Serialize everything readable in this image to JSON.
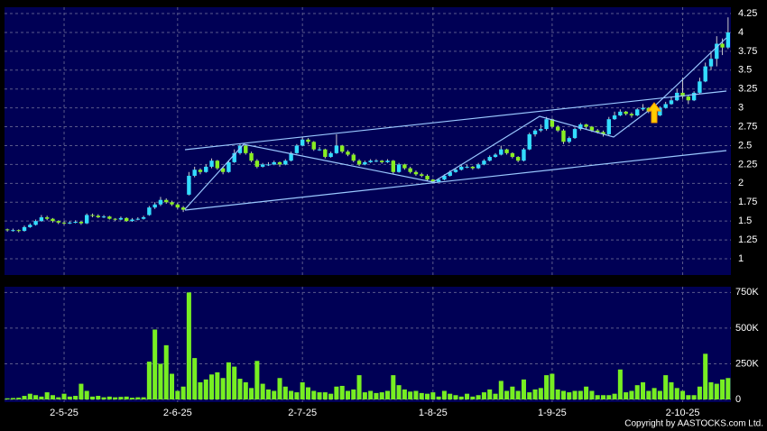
{
  "chart_data": {
    "type": "candlestick",
    "up_color": "#33ddff",
    "down_color": "#88ee22",
    "volume_color": "#77ee22",
    "grid": true,
    "copyright": "Copyright by AASTOCKS.com Ltd.",
    "categories": [
      null,
      null,
      null,
      null,
      null,
      null,
      null,
      null,
      null,
      null,
      "2-5-25",
      null,
      null,
      null,
      null,
      null,
      null,
      null,
      null,
      null,
      null,
      null,
      null,
      null,
      null,
      null,
      null,
      null,
      null,
      null,
      "2-6-25",
      null,
      null,
      null,
      null,
      null,
      null,
      null,
      null,
      null,
      null,
      null,
      null,
      null,
      null,
      null,
      null,
      null,
      null,
      null,
      null,
      null,
      "2-7-25",
      null,
      null,
      null,
      null,
      null,
      null,
      null,
      null,
      null,
      null,
      null,
      null,
      null,
      null,
      null,
      null,
      null,
      null,
      null,
      null,
      null,
      null,
      "1-8-25",
      null,
      null,
      null,
      null,
      null,
      null,
      null,
      null,
      null,
      null,
      null,
      null,
      null,
      null,
      null,
      null,
      null,
      null,
      null,
      null,
      "1-9-25",
      null,
      null,
      null,
      null,
      null,
      null,
      null,
      null,
      null,
      null,
      null,
      null,
      null,
      null,
      null,
      null,
      null,
      null,
      null,
      null,
      null,
      null,
      "2-10-25",
      null,
      null,
      null,
      null,
      null,
      null,
      null,
      null
    ],
    "ohlc": [
      [
        1.39,
        1.4,
        1.36,
        1.38
      ],
      [
        1.38,
        1.4,
        1.36,
        1.38
      ],
      [
        1.38,
        1.39,
        1.35,
        1.37
      ],
      [
        1.37,
        1.44,
        1.36,
        1.42
      ],
      [
        1.42,
        1.47,
        1.41,
        1.45
      ],
      [
        1.45,
        1.52,
        1.44,
        1.5
      ],
      [
        1.5,
        1.58,
        1.49,
        1.55
      ],
      [
        1.55,
        1.57,
        1.51,
        1.53
      ],
      [
        1.53,
        1.54,
        1.48,
        1.5
      ],
      [
        1.5,
        1.51,
        1.46,
        1.48
      ],
      [
        1.48,
        1.5,
        1.45,
        1.47
      ],
      [
        1.47,
        1.5,
        1.46,
        1.48
      ],
      [
        1.48,
        1.51,
        1.47,
        1.49
      ],
      [
        1.49,
        1.5,
        1.45,
        1.47
      ],
      [
        1.47,
        1.6,
        1.46,
        1.58
      ],
      [
        1.58,
        1.6,
        1.55,
        1.57
      ],
      [
        1.57,
        1.59,
        1.54,
        1.55
      ],
      [
        1.55,
        1.58,
        1.54,
        1.56
      ],
      [
        1.56,
        1.57,
        1.52,
        1.53
      ],
      [
        1.53,
        1.54,
        1.5,
        1.52
      ],
      [
        1.52,
        1.56,
        1.51,
        1.54
      ],
      [
        1.54,
        1.55,
        1.49,
        1.5
      ],
      [
        1.5,
        1.54,
        1.49,
        1.52
      ],
      [
        1.52,
        1.55,
        1.51,
        1.53
      ],
      [
        1.53,
        1.57,
        1.52,
        1.55
      ],
      [
        1.58,
        1.7,
        1.57,
        1.68
      ],
      [
        1.68,
        1.75,
        1.66,
        1.72
      ],
      [
        1.72,
        1.82,
        1.7,
        1.78
      ],
      [
        1.78,
        1.8,
        1.73,
        1.75
      ],
      [
        1.75,
        1.77,
        1.7,
        1.72
      ],
      [
        1.72,
        1.74,
        1.66,
        1.68
      ],
      [
        1.68,
        1.7,
        1.62,
        1.65
      ],
      [
        1.85,
        2.15,
        1.84,
        2.1
      ],
      [
        2.1,
        2.22,
        2.08,
        2.18
      ],
      [
        2.18,
        2.2,
        2.12,
        2.15
      ],
      [
        2.15,
        2.25,
        2.14,
        2.22
      ],
      [
        2.22,
        2.33,
        2.2,
        2.3
      ],
      [
        2.3,
        2.31,
        2.18,
        2.2
      ],
      [
        2.2,
        2.22,
        2.12,
        2.15
      ],
      [
        2.15,
        2.3,
        2.14,
        2.28
      ],
      [
        2.28,
        2.45,
        2.27,
        2.4
      ],
      [
        2.4,
        2.52,
        2.38,
        2.5
      ],
      [
        2.5,
        2.51,
        2.38,
        2.4
      ],
      [
        2.4,
        2.42,
        2.28,
        2.3
      ],
      [
        2.3,
        2.32,
        2.2,
        2.22
      ],
      [
        2.22,
        2.27,
        2.21,
        2.25
      ],
      [
        2.25,
        2.28,
        2.23,
        2.25
      ],
      [
        2.25,
        2.3,
        2.24,
        2.28
      ],
      [
        2.28,
        2.29,
        2.22,
        2.25
      ],
      [
        2.25,
        2.32,
        2.24,
        2.3
      ],
      [
        2.3,
        2.42,
        2.29,
        2.4
      ],
      [
        2.4,
        2.52,
        2.39,
        2.5
      ],
      [
        2.5,
        2.62,
        2.49,
        2.58
      ],
      [
        2.58,
        2.6,
        2.52,
        2.55
      ],
      [
        2.55,
        2.56,
        2.43,
        2.45
      ],
      [
        2.45,
        2.48,
        2.43,
        2.45
      ],
      [
        2.45,
        2.46,
        2.33,
        2.35
      ],
      [
        2.35,
        2.42,
        2.34,
        2.4
      ],
      [
        2.4,
        2.65,
        2.39,
        2.5
      ],
      [
        2.5,
        2.51,
        2.4,
        2.42
      ],
      [
        2.42,
        2.44,
        2.36,
        2.38
      ],
      [
        2.38,
        2.4,
        2.28,
        2.3
      ],
      [
        2.3,
        2.32,
        2.23,
        2.25
      ],
      [
        2.25,
        2.3,
        2.24,
        2.28
      ],
      [
        2.28,
        2.32,
        2.27,
        2.3
      ],
      [
        2.3,
        2.32,
        2.28,
        2.3
      ],
      [
        2.3,
        2.31,
        2.26,
        2.28
      ],
      [
        2.28,
        2.32,
        2.27,
        2.3
      ],
      [
        2.3,
        2.31,
        2.12,
        2.15
      ],
      [
        2.15,
        2.27,
        2.14,
        2.25
      ],
      [
        2.25,
        2.26,
        2.18,
        2.2
      ],
      [
        2.2,
        2.22,
        2.13,
        2.15
      ],
      [
        2.15,
        2.17,
        2.1,
        2.12
      ],
      [
        2.12,
        2.14,
        2.08,
        2.1
      ],
      [
        2.1,
        2.12,
        2.03,
        2.05
      ],
      [
        2.05,
        2.06,
        2.0,
        2.02
      ],
      [
        2.02,
        2.07,
        2.01,
        2.05
      ],
      [
        2.05,
        2.12,
        2.04,
        2.1
      ],
      [
        2.1,
        2.17,
        2.09,
        2.15
      ],
      [
        2.15,
        2.2,
        2.14,
        2.18
      ],
      [
        2.18,
        2.24,
        2.17,
        2.22
      ],
      [
        2.22,
        2.25,
        2.2,
        2.22
      ],
      [
        2.22,
        2.23,
        2.18,
        2.2
      ],
      [
        2.2,
        2.27,
        2.19,
        2.25
      ],
      [
        2.25,
        2.32,
        2.24,
        2.3
      ],
      [
        2.3,
        2.37,
        2.29,
        2.35
      ],
      [
        2.35,
        2.4,
        2.34,
        2.38
      ],
      [
        2.38,
        2.5,
        2.37,
        2.45
      ],
      [
        2.45,
        2.46,
        2.38,
        2.4
      ],
      [
        2.4,
        2.41,
        2.33,
        2.35
      ],
      [
        2.35,
        2.36,
        2.28,
        2.3
      ],
      [
        2.3,
        2.47,
        2.29,
        2.45
      ],
      [
        2.45,
        2.67,
        2.44,
        2.65
      ],
      [
        2.65,
        2.72,
        2.62,
        2.7
      ],
      [
        2.7,
        2.78,
        2.68,
        2.72
      ],
      [
        2.72,
        2.88,
        2.7,
        2.85
      ],
      [
        2.85,
        2.86,
        2.73,
        2.75
      ],
      [
        2.75,
        2.77,
        2.68,
        2.7
      ],
      [
        2.7,
        2.72,
        2.52,
        2.55
      ],
      [
        2.55,
        2.62,
        2.53,
        2.6
      ],
      [
        2.6,
        2.74,
        2.59,
        2.72
      ],
      [
        2.72,
        2.8,
        2.7,
        2.78
      ],
      [
        2.78,
        2.79,
        2.72,
        2.75
      ],
      [
        2.75,
        2.76,
        2.68,
        2.7
      ],
      [
        2.7,
        2.72,
        2.66,
        2.68
      ],
      [
        2.68,
        2.7,
        2.62,
        2.65
      ],
      [
        2.65,
        2.88,
        2.64,
        2.85
      ],
      [
        2.85,
        2.95,
        2.84,
        2.9
      ],
      [
        2.9,
        2.98,
        2.89,
        2.95
      ],
      [
        2.95,
        2.96,
        2.9,
        2.92
      ],
      [
        2.92,
        2.94,
        2.87,
        2.9
      ],
      [
        2.9,
        3.0,
        2.89,
        2.98
      ],
      [
        2.98,
        3.05,
        2.96,
        3.0
      ],
      [
        3.0,
        3.01,
        2.93,
        2.95
      ],
      [
        2.95,
        2.97,
        2.88,
        2.9
      ],
      [
        2.9,
        3.02,
        2.89,
        3.0
      ],
      [
        3.0,
        3.08,
        2.99,
        3.05
      ],
      [
        3.05,
        3.15,
        3.04,
        3.1
      ],
      [
        3.1,
        3.25,
        3.09,
        3.2
      ],
      [
        3.2,
        3.4,
        3.12,
        3.15
      ],
      [
        3.15,
        3.17,
        3.05,
        3.1
      ],
      [
        3.1,
        3.22,
        3.09,
        3.2
      ],
      [
        3.2,
        3.4,
        3.19,
        3.35
      ],
      [
        3.35,
        3.6,
        3.34,
        3.55
      ],
      [
        3.55,
        3.75,
        3.5,
        3.65
      ],
      [
        3.65,
        3.95,
        3.55,
        3.85
      ],
      [
        3.85,
        3.92,
        3.7,
        3.8
      ],
      [
        3.8,
        4.2,
        3.78,
        4.0
      ]
    ],
    "volume": [
      8000,
      10000,
      12000,
      25000,
      40000,
      30000,
      20000,
      50000,
      30000,
      15000,
      40000,
      20000,
      25000,
      110000,
      60000,
      20000,
      25000,
      15000,
      20000,
      15000,
      18000,
      20000,
      12000,
      15000,
      15000,
      265000,
      490000,
      250000,
      380000,
      180000,
      60000,
      90000,
      750000,
      290000,
      120000,
      140000,
      175000,
      190000,
      150000,
      260000,
      230000,
      145000,
      120000,
      80000,
      270000,
      110000,
      70000,
      60000,
      150000,
      90000,
      60000,
      50000,
      120000,
      85000,
      60000,
      50000,
      50000,
      40000,
      90000,
      95000,
      60000,
      70000,
      170000,
      50000,
      60000,
      45000,
      50000,
      60000,
      170000,
      100000,
      70000,
      55000,
      60000,
      45000,
      40000,
      50000,
      20000,
      60000,
      40000,
      30000,
      20000,
      40000,
      20000,
      30000,
      50000,
      70000,
      40000,
      130000,
      60000,
      90000,
      60000,
      140000,
      50000,
      70000,
      80000,
      170000,
      180000,
      70000,
      60000,
      50000,
      60000,
      60000,
      90000,
      60000,
      30000,
      30000,
      30000,
      40000,
      210000,
      50000,
      60000,
      100000,
      120000,
      60000,
      80000,
      60000,
      170000,
      120000,
      80000,
      60000,
      30000,
      30000,
      90000,
      320000,
      120000,
      110000,
      140000,
      150000
    ],
    "ylim": [
      0.785,
      4.334
    ],
    "yticks": [
      1,
      1.25,
      1.5,
      1.75,
      2,
      2.25,
      2.5,
      2.75,
      3,
      3.25,
      3.5,
      3.75,
      4,
      4.25
    ],
    "y2lim": [
      0,
      790000
    ],
    "y2ticks": [
      0,
      {
        "value": 250000,
        "label": "250K"
      },
      {
        "value": 500000,
        "label": "500K"
      },
      {
        "value": 750000,
        "label": "750K"
      }
    ]
  }
}
